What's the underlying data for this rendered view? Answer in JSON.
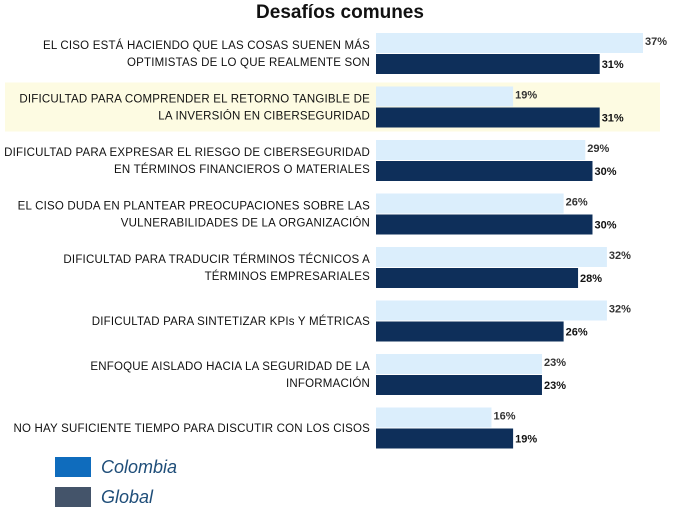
{
  "chart_data": {
    "type": "bar",
    "orientation": "horizontal",
    "title": "Desafíos comunes",
    "categories": [
      [
        "EL CISO ESTÁ HACIENDO QUE LAS COSAS SUENEN MÁS",
        "OPTIMISTAS DE LO QUE REALMENTE SON"
      ],
      [
        "DIFICULTAD PARA COMPRENDER EL RETORNO TANGIBLE DE",
        "LA INVERSIÓN EN CIBERSEGURIDAD"
      ],
      [
        "DIFICULTAD PARA EXPRESAR EL RIESGO DE CIBERSEGURIDAD",
        "EN TÉRMINOS FINANCIEROS O MATERIALES"
      ],
      [
        "EL CISO DUDA EN PLANTEAR PREOCUPACIONES SOBRE LAS",
        "VULNERABILIDADES DE LA ORGANIZACIÓN"
      ],
      [
        "DIFICULTAD PARA TRADUCIR TÉRMINOS TÉCNICOS A",
        "TÉRMINOS EMPRESARIALES"
      ],
      [
        "DIFICULTAD PARA SINTETIZAR KPIs Y MÉTRICAS"
      ],
      [
        "ENFOQUE AISLADO HACIA LA SEGURIDAD DE LA",
        "INFORMACIÓN"
      ],
      [
        "NO HAY SUFICIENTE TIEMPO PARA DISCUTIR CON LOS CISOS"
      ]
    ],
    "series": [
      {
        "name": "Colombia",
        "values": [
          37,
          19,
          29,
          26,
          32,
          32,
          23,
          16
        ],
        "color": "#dbeefc"
      },
      {
        "name": "Global",
        "values": [
          31,
          31,
          30,
          30,
          28,
          26,
          23,
          19
        ],
        "color": "#0e2f5a"
      }
    ],
    "value_suffix": "%",
    "highlighted_category_index": 1,
    "highlight_color": "#fdfbe2",
    "xlim": [
      0,
      37
    ],
    "grid": false,
    "legend_position": "bottom-left"
  },
  "legend": {
    "items": [
      {
        "label": "Colombia",
        "color": "#0f6cbd"
      },
      {
        "label": "Global",
        "color": "#44546a"
      }
    ]
  }
}
